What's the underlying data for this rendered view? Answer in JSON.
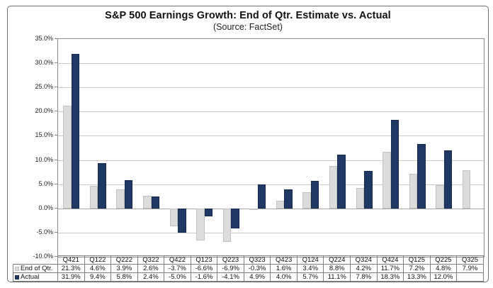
{
  "title": "S&P 500 Earnings Growth: End of Qtr. Estimate vs. Actual",
  "subtitle": "(Source: FactSet)",
  "chart_data": {
    "type": "bar",
    "title": "S&P 500 Earnings Growth: End of Qtr. Estimate vs. Actual",
    "subtitle": "(Source: FactSet)",
    "categories": [
      "Q421",
      "Q122",
      "Q222",
      "Q322",
      "Q422",
      "Q123",
      "Q223",
      "Q323",
      "Q423",
      "Q124",
      "Q224",
      "Q324",
      "Q424",
      "Q125",
      "Q225",
      "Q325"
    ],
    "series": [
      {
        "name": "End of Qtr.",
        "color": "#DCDCDC",
        "border_color": "#C2C2C2",
        "values": [
          21.3,
          4.6,
          3.9,
          2.6,
          -3.7,
          -6.6,
          -6.9,
          -0.3,
          1.6,
          3.4,
          8.8,
          4.2,
          11.7,
          7.2,
          4.8,
          7.9
        ]
      },
      {
        "name": "Actual",
        "color": "#1F3864",
        "border_color": "#16294A",
        "values": [
          31.9,
          9.4,
          5.8,
          2.4,
          -5.0,
          -1.6,
          -4.1,
          4.9,
          4.0,
          5.7,
          11.1,
          7.8,
          18.3,
          13.3,
          12.0,
          null
        ]
      }
    ],
    "ylim": [
      -10,
      35
    ],
    "yticks": [
      {
        "value": 35,
        "label": "35.0%"
      },
      {
        "value": 30,
        "label": "30.0%"
      },
      {
        "value": 25,
        "label": "25.0%"
      },
      {
        "value": 20,
        "label": "20.0%"
      },
      {
        "value": 15,
        "label": "15.0%"
      },
      {
        "value": 10,
        "label": "10.0%"
      },
      {
        "value": 5,
        "label": "5.0%"
      },
      {
        "value": 0,
        "label": "0.0%"
      },
      {
        "value": -5,
        "label": "-5.0%"
      },
      {
        "value": -10,
        "label": "-10.0%"
      }
    ],
    "grid": true,
    "legend_position": "data-table-left"
  },
  "table": {
    "columns": [
      "Q421",
      "Q122",
      "Q222",
      "Q322",
      "Q422",
      "Q123",
      "Q223",
      "Q323",
      "Q423",
      "Q124",
      "Q224",
      "Q324",
      "Q424",
      "Q125",
      "Q225",
      "Q325"
    ],
    "rows": [
      {
        "legend": "End of Qtr.",
        "cells": [
          "21.3%",
          "4.6%",
          "3.9%",
          "2.6%",
          "-3.7%",
          "-6.6%",
          "-6.9%",
          "-0.3%",
          "1.6%",
          "3.4%",
          "8.8%",
          "4.2%",
          "11.7%",
          "7.2%",
          "4.8%",
          "7.9%"
        ]
      },
      {
        "legend": "Actual",
        "cells": [
          "31.9%",
          "9.4%",
          "5.8%",
          "2.4%",
          "-5.0%",
          "-1.6%",
          "-4.1%",
          "4.9%",
          "4.0%",
          "5.7%",
          "11.1%",
          "7.8%",
          "18.3%",
          "13.3%",
          "12.0%",
          ""
        ]
      }
    ]
  }
}
